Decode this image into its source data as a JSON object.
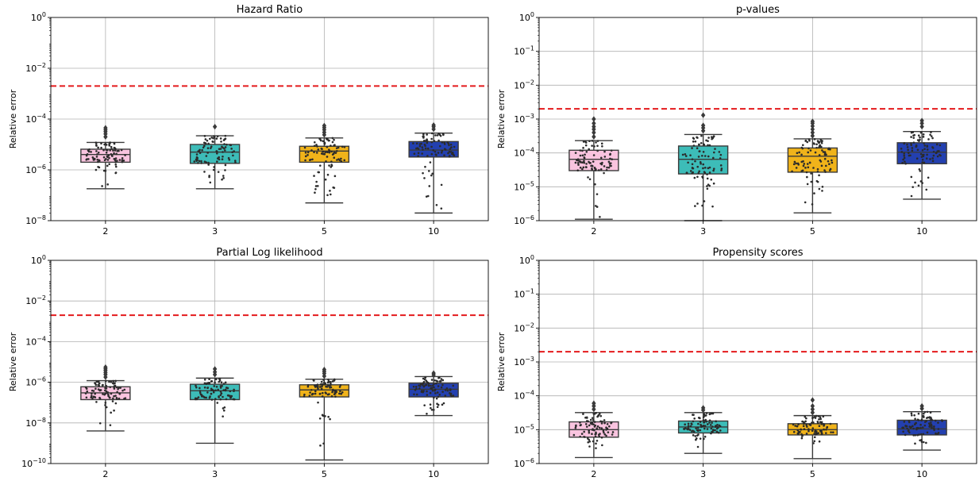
{
  "chart_data": [
    {
      "type": "box",
      "title": "Hazard Ratio",
      "ylabel": "Relative error",
      "yscale": "log",
      "ylim_exp": [
        -8,
        0
      ],
      "yticks": [
        {
          "exp": -8,
          "label": "10",
          "sup": "−8"
        },
        {
          "exp": -6,
          "label": "10",
          "sup": "−6"
        },
        {
          "exp": -4,
          "label": "10",
          "sup": "−4"
        },
        {
          "exp": -2,
          "label": "10",
          "sup": "−2"
        },
        {
          "exp": 0,
          "label": "10",
          "sup": "0"
        }
      ],
      "categories": [
        "2",
        "3",
        "5",
        "10"
      ],
      "threshold": 0.002,
      "boxes": [
        {
          "category": "2",
          "color": "#f9c4df",
          "whislo": 1.8e-07,
          "q1": 2e-06,
          "med": 4e-06,
          "q3": 6.5e-06,
          "whishi": 1.2e-05,
          "fliers": [
            2e-05,
            2.6e-05,
            3.2e-05,
            3.8e-05,
            4.5e-05
          ]
        },
        {
          "category": "3",
          "color": "#3dbcb8",
          "whislo": 1.8e-07,
          "q1": 1.8e-06,
          "med": 5e-06,
          "q3": 1e-05,
          "whishi": 2.2e-05,
          "fliers": [
            5e-05
          ]
        },
        {
          "category": "5",
          "color": "#f0b31a",
          "whislo": 5e-08,
          "q1": 2e-06,
          "med": 5.5e-06,
          "q3": 8.5e-06,
          "whishi": 1.8e-05,
          "fliers": [
            2.4e-05,
            3e-05,
            3.8e-05,
            4.6e-05,
            5.5e-05
          ]
        },
        {
          "category": "10",
          "color": "#2340b0",
          "whislo": 2e-08,
          "q1": 3.2e-06,
          "med": 6e-06,
          "q3": 1.3e-05,
          "whishi": 2.8e-05,
          "fliers": [
            4e-05,
            5e-05,
            5.8e-05
          ]
        }
      ]
    },
    {
      "type": "box",
      "title": "p-values",
      "ylabel": "Relative error",
      "yscale": "log",
      "ylim_exp": [
        -6,
        0
      ],
      "yticks": [
        {
          "exp": -6,
          "label": "10",
          "sup": "−6"
        },
        {
          "exp": -5,
          "label": "10",
          "sup": "−5"
        },
        {
          "exp": -4,
          "label": "10",
          "sup": "−4"
        },
        {
          "exp": -3,
          "label": "10",
          "sup": "−3"
        },
        {
          "exp": -2,
          "label": "10",
          "sup": "−2"
        },
        {
          "exp": -1,
          "label": "10",
          "sup": "−1"
        },
        {
          "exp": 0,
          "label": "10",
          "sup": "0"
        }
      ],
      "categories": [
        "2",
        "3",
        "5",
        "10"
      ],
      "threshold": 0.002,
      "boxes": [
        {
          "category": "2",
          "color": "#f9c4df",
          "whislo": 1.1e-06,
          "q1": 3e-05,
          "med": 6.5e-05,
          "q3": 0.00012,
          "whishi": 0.00023,
          "fliers": [
            0.0003,
            0.0004,
            0.0005,
            0.0006,
            0.00075,
            0.001
          ]
        },
        {
          "category": "3",
          "color": "#3dbcb8",
          "whislo": 1e-06,
          "q1": 2.4e-05,
          "med": 6.5e-05,
          "q3": 0.00016,
          "whishi": 0.00035,
          "fliers": [
            0.00045,
            0.00055,
            0.00065,
            0.0013
          ]
        },
        {
          "category": "5",
          "color": "#f0b31a",
          "whislo": 1.7e-06,
          "q1": 2.7e-05,
          "med": 8e-05,
          "q3": 0.00014,
          "whishi": 0.00026,
          "fliers": [
            0.00032,
            0.0004,
            0.0005,
            0.00062,
            0.00075,
            0.00085
          ]
        },
        {
          "category": "10",
          "color": "#2340b0",
          "whislo": 4.3e-06,
          "q1": 4.8e-05,
          "med": 0.000105,
          "q3": 0.0002,
          "whishi": 0.00043,
          "fliers": [
            0.0006,
            0.00075,
            0.0009
          ]
        }
      ]
    },
    {
      "type": "box",
      "title": "Partial Log likelihood",
      "ylabel": "Relative error",
      "yscale": "log",
      "ylim_exp": [
        -10,
        0
      ],
      "yticks": [
        {
          "exp": -10,
          "label": "10",
          "sup": "−10"
        },
        {
          "exp": -8,
          "label": "10",
          "sup": "−8"
        },
        {
          "exp": -6,
          "label": "10",
          "sup": "−6"
        },
        {
          "exp": -4,
          "label": "10",
          "sup": "−4"
        },
        {
          "exp": -2,
          "label": "10",
          "sup": "−2"
        },
        {
          "exp": 0,
          "label": "10",
          "sup": "0"
        }
      ],
      "categories": [
        "2",
        "3",
        "5",
        "10"
      ],
      "threshold": 0.002,
      "boxes": [
        {
          "category": "2",
          "color": "#f9c4df",
          "whislo": 4e-09,
          "q1": 1.4e-07,
          "med": 3e-07,
          "q3": 6e-07,
          "whishi": 1.2e-06,
          "fliers": [
            1.8e-06,
            2.4e-06,
            3e-06,
            3.8e-06,
            4.6e-06,
            5.5e-06
          ]
        },
        {
          "category": "3",
          "color": "#3dbcb8",
          "whislo": 1e-09,
          "q1": 1.4e-07,
          "med": 3.8e-07,
          "q3": 8e-07,
          "whishi": 1.6e-06,
          "fliers": [
            2.4e-06,
            3.2e-06,
            4.5e-06
          ]
        },
        {
          "category": "5",
          "color": "#f0b31a",
          "whislo": 1.5e-10,
          "q1": 1.9e-07,
          "med": 4.2e-07,
          "q3": 7.5e-07,
          "whishi": 1.4e-06,
          "fliers": [
            2e-06,
            2.7e-06,
            3.4e-06,
            4.2e-06
          ]
        },
        {
          "category": "10",
          "color": "#2340b0",
          "whislo": 2.3e-08,
          "q1": 1.9e-07,
          "med": 4.5e-07,
          "q3": 9e-07,
          "whishi": 1.9e-06,
          "fliers": [
            2.3e-06,
            2.8e-06
          ]
        }
      ]
    },
    {
      "type": "box",
      "title": "Propensity scores",
      "ylabel": "Relative error",
      "yscale": "log",
      "ylim_exp": [
        -6,
        0
      ],
      "yticks": [
        {
          "exp": -6,
          "label": "10",
          "sup": "−6"
        },
        {
          "exp": -5,
          "label": "10",
          "sup": "−5"
        },
        {
          "exp": -4,
          "label": "10",
          "sup": "−4"
        },
        {
          "exp": -3,
          "label": "10",
          "sup": "−3"
        },
        {
          "exp": -2,
          "label": "10",
          "sup": "−2"
        },
        {
          "exp": -1,
          "label": "10",
          "sup": "−1"
        },
        {
          "exp": 0,
          "label": "10",
          "sup": "0"
        }
      ],
      "categories": [
        "2",
        "3",
        "5",
        "10"
      ],
      "threshold": 0.002,
      "boxes": [
        {
          "category": "2",
          "color": "#f9c4df",
          "whislo": 1.5e-06,
          "q1": 6e-06,
          "med": 1e-05,
          "q3": 1.7e-05,
          "whishi": 3.2e-05,
          "fliers": [
            4e-05,
            5e-05,
            6e-05
          ]
        },
        {
          "category": "3",
          "color": "#3dbcb8",
          "whislo": 2e-06,
          "q1": 8e-06,
          "med": 1.2e-05,
          "q3": 1.8e-05,
          "whishi": 3.2e-05,
          "fliers": [
            3.8e-05,
            4.4e-05
          ]
        },
        {
          "category": "5",
          "color": "#f0b31a",
          "whislo": 1.4e-06,
          "q1": 7e-06,
          "med": 1e-05,
          "q3": 1.5e-05,
          "whishi": 2.6e-05,
          "fliers": [
            3.2e-05,
            4e-05,
            5e-05,
            7.5e-05
          ]
        },
        {
          "category": "10",
          "color": "#2340b0",
          "whislo": 2.5e-06,
          "q1": 7e-06,
          "med": 1.05e-05,
          "q3": 1.9e-05,
          "whishi": 3.4e-05,
          "fliers": [
            4.2e-05,
            5e-05
          ]
        }
      ]
    }
  ]
}
